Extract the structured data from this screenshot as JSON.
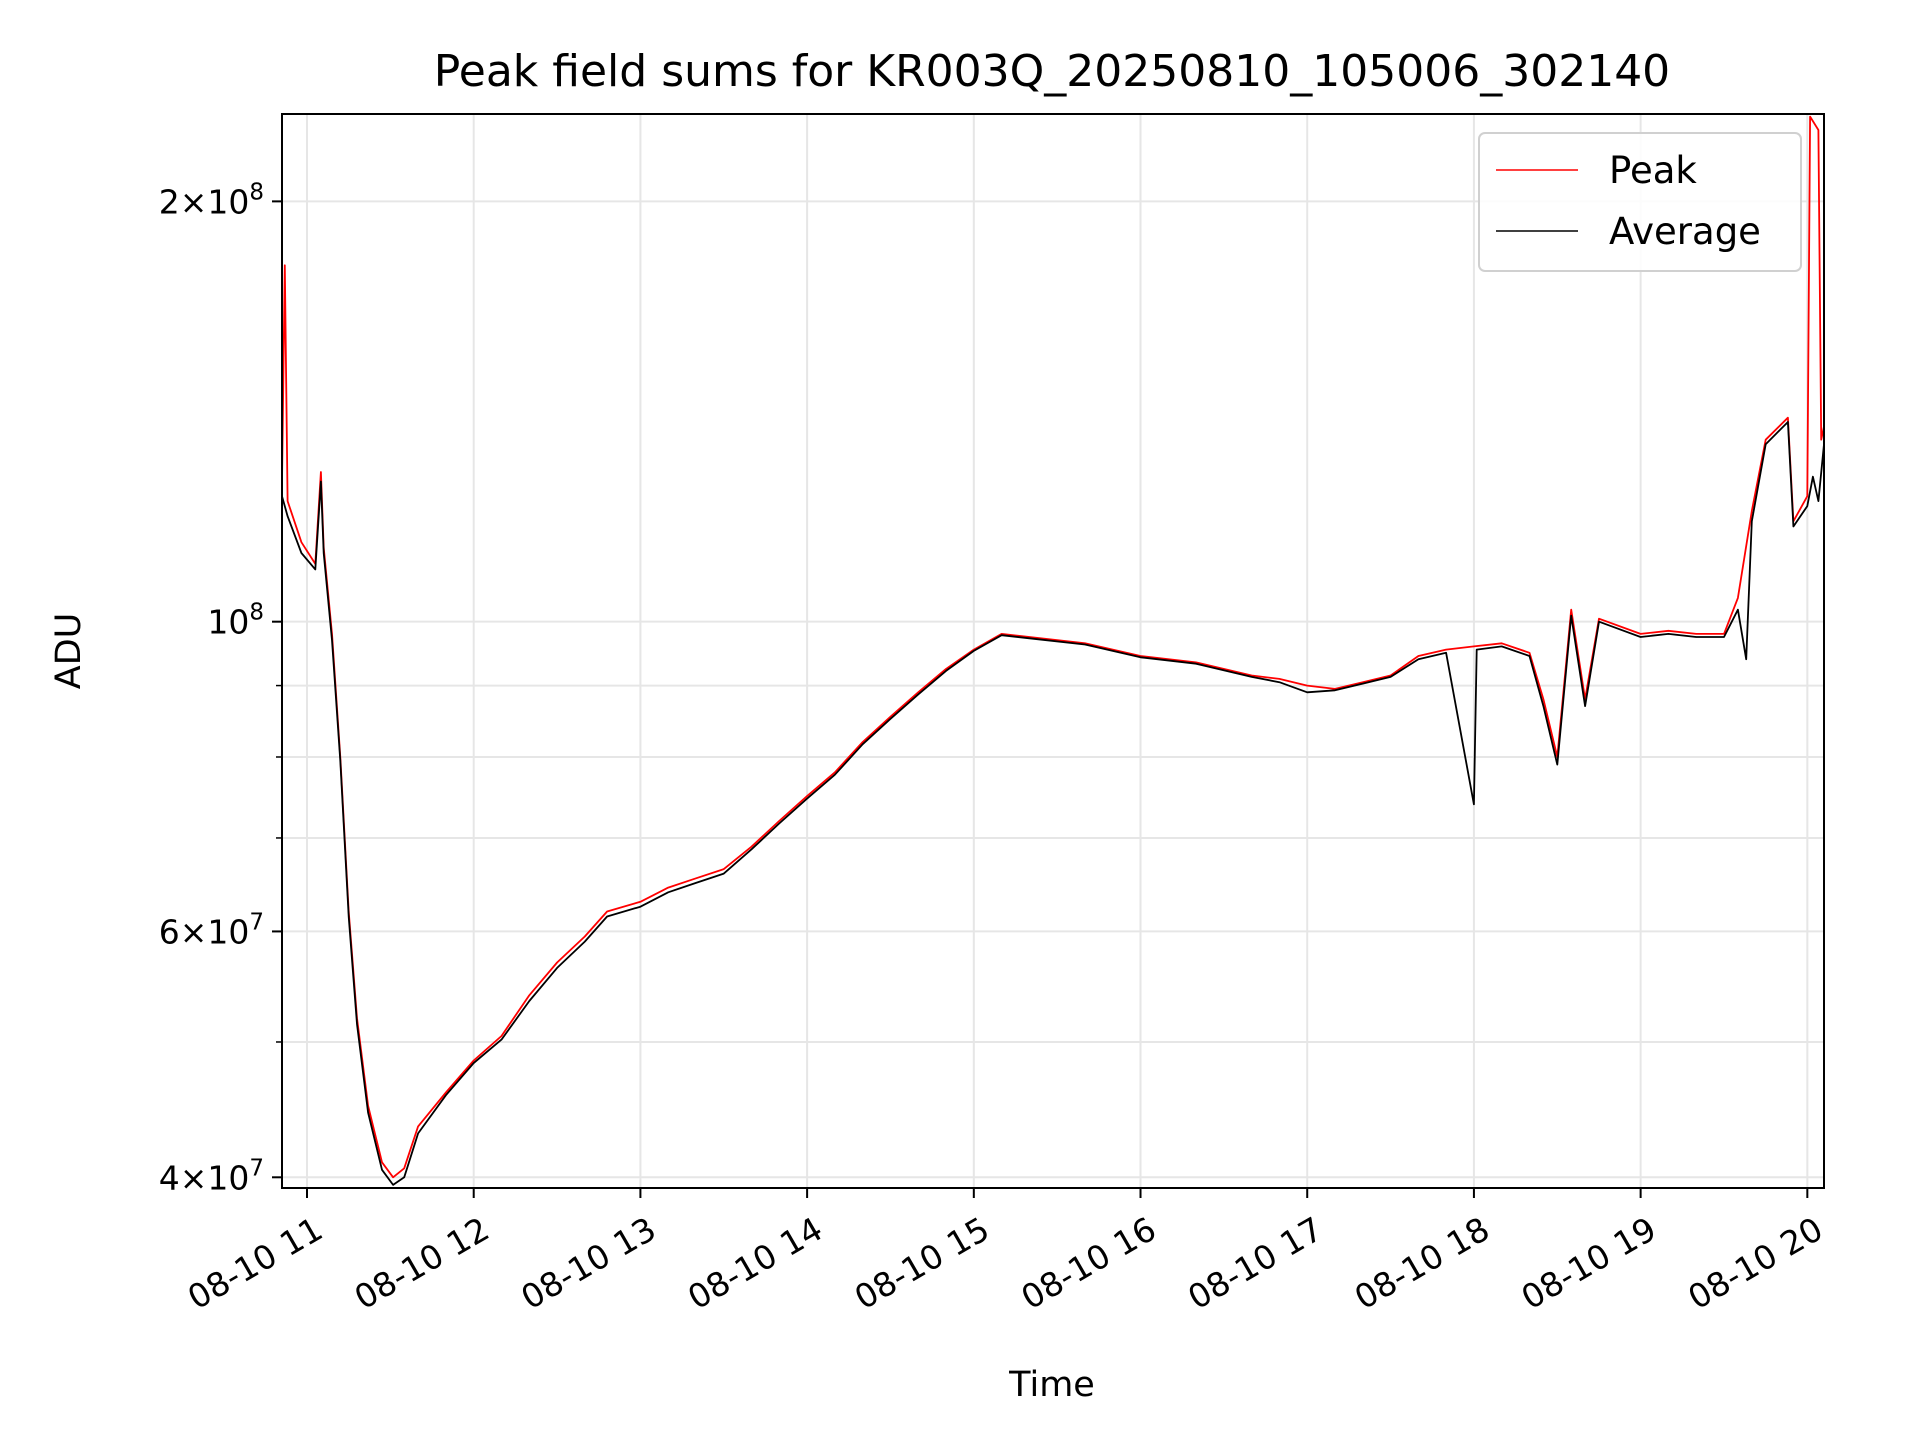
{
  "chart_data": {
    "type": "line",
    "title": "Peak field sums for KR003Q_20250810_105006_302140",
    "xlabel": "Time",
    "ylabel": "ADU",
    "y_scale": "log",
    "xlim": [
      "08-10 10:51",
      "08-10 20:06"
    ],
    "ylim": [
      39300000,
      231000000
    ],
    "grid": true,
    "legend_position": "top-right",
    "x_ticks": [
      {
        "t": "08-10 11:00",
        "label": "08-10 11"
      },
      {
        "t": "08-10 12:00",
        "label": "08-10 12"
      },
      {
        "t": "08-10 13:00",
        "label": "08-10 13"
      },
      {
        "t": "08-10 14:00",
        "label": "08-10 14"
      },
      {
        "t": "08-10 15:00",
        "label": "08-10 15"
      },
      {
        "t": "08-10 16:00",
        "label": "08-10 16"
      },
      {
        "t": "08-10 17:00",
        "label": "08-10 17"
      },
      {
        "t": "08-10 18:00",
        "label": "08-10 18"
      },
      {
        "t": "08-10 19:00",
        "label": "08-10 19"
      },
      {
        "t": "08-10 20:00",
        "label": "08-10 20"
      }
    ],
    "y_ticks_major": [
      {
        "value": 40000000,
        "mantissa": "4",
        "exponent": "7"
      },
      {
        "value": 60000000,
        "mantissa": "6",
        "exponent": "7"
      },
      {
        "value": 100000000,
        "mantissa": "",
        "exponent": "8"
      },
      {
        "value": 200000000,
        "mantissa": "2",
        "exponent": "8"
      }
    ],
    "y_ticks_minor": [
      50000000,
      70000000,
      80000000,
      90000000
    ],
    "series": [
      {
        "name": "Peak",
        "color": "#ff0000",
        "points": [
          [
            "08-10 10:51",
            126000000
          ],
          [
            "08-10 10:52",
            180000000
          ],
          [
            "08-10 10:53",
            122000000
          ],
          [
            "08-10 10:58",
            114000000
          ],
          [
            "08-10 11:03",
            110000000
          ],
          [
            "08-10 11:05",
            128000000
          ],
          [
            "08-10 11:06",
            113000000
          ],
          [
            "08-10 11:09",
            98000000
          ],
          [
            "08-10 11:12",
            80000000
          ],
          [
            "08-10 11:15",
            62000000
          ],
          [
            "08-10 11:18",
            52000000
          ],
          [
            "08-10 11:22",
            45000000
          ],
          [
            "08-10 11:27",
            41000000
          ],
          [
            "08-10 11:31",
            40000000
          ],
          [
            "08-10 11:35",
            40600000
          ],
          [
            "08-10 11:40",
            43500000
          ],
          [
            "08-10 11:50",
            46000000
          ],
          [
            "08-10 12:00",
            48500000
          ],
          [
            "08-10 12:10",
            50500000
          ],
          [
            "08-10 12:20",
            54000000
          ],
          [
            "08-10 12:30",
            57000000
          ],
          [
            "08-10 12:40",
            59500000
          ],
          [
            "08-10 12:48",
            62000000
          ],
          [
            "08-10 13:00",
            63000000
          ],
          [
            "08-10 13:10",
            64500000
          ],
          [
            "08-10 13:20",
            65500000
          ],
          [
            "08-10 13:30",
            66500000
          ],
          [
            "08-10 13:40",
            69000000
          ],
          [
            "08-10 13:50",
            72000000
          ],
          [
            "08-10 14:00",
            75000000
          ],
          [
            "08-10 14:10",
            78000000
          ],
          [
            "08-10 14:20",
            82000000
          ],
          [
            "08-10 14:30",
            85500000
          ],
          [
            "08-10 14:40",
            89000000
          ],
          [
            "08-10 14:50",
            92500000
          ],
          [
            "08-10 15:00",
            95500000
          ],
          [
            "08-10 15:10",
            98000000
          ],
          [
            "08-10 15:20",
            97500000
          ],
          [
            "08-10 15:40",
            96500000
          ],
          [
            "08-10 16:00",
            94500000
          ],
          [
            "08-10 16:20",
            93500000
          ],
          [
            "08-10 16:40",
            91500000
          ],
          [
            "08-10 16:50",
            91000000
          ],
          [
            "08-10 17:00",
            90000000
          ],
          [
            "08-10 17:10",
            89500000
          ],
          [
            "08-10 17:20",
            90500000
          ],
          [
            "08-10 17:30",
            91500000
          ],
          [
            "08-10 17:40",
            94500000
          ],
          [
            "08-10 17:50",
            95500000
          ],
          [
            "08-10 18:00",
            96000000
          ],
          [
            "08-10 18:10",
            96500000
          ],
          [
            "08-10 18:20",
            95000000
          ],
          [
            "08-10 18:25",
            88000000
          ],
          [
            "08-10 18:30",
            80000000
          ],
          [
            "08-10 18:35",
            102000000
          ],
          [
            "08-10 18:40",
            88000000
          ],
          [
            "08-10 18:45",
            100500000
          ],
          [
            "08-10 19:00",
            98000000
          ],
          [
            "08-10 19:10",
            98500000
          ],
          [
            "08-10 19:20",
            98000000
          ],
          [
            "08-10 19:30",
            98000000
          ],
          [
            "08-10 19:35",
            104000000
          ],
          [
            "08-10 19:40",
            120000000
          ],
          [
            "08-10 19:45",
            135000000
          ],
          [
            "08-10 19:53",
            140000000
          ],
          [
            "08-10 19:55",
            118000000
          ],
          [
            "08-10 20:00",
            123000000
          ],
          [
            "08-10 20:01",
            230000000
          ],
          [
            "08-10 20:04",
            225000000
          ],
          [
            "08-10 20:05",
            135000000
          ],
          [
            "08-10 20:06",
            138000000
          ]
        ]
      },
      {
        "name": "Average",
        "color": "#000000",
        "points": [
          [
            "08-10 10:51",
            123000000
          ],
          [
            "08-10 10:53",
            119000000
          ],
          [
            "08-10 10:58",
            112000000
          ],
          [
            "08-10 11:03",
            109000000
          ],
          [
            "08-10 11:05",
            126000000
          ],
          [
            "08-10 11:06",
            112000000
          ],
          [
            "08-10 11:09",
            97000000
          ],
          [
            "08-10 11:12",
            79500000
          ],
          [
            "08-10 11:15",
            61500000
          ],
          [
            "08-10 11:18",
            51500000
          ],
          [
            "08-10 11:22",
            44500000
          ],
          [
            "08-10 11:27",
            40500000
          ],
          [
            "08-10 11:31",
            39500000
          ],
          [
            "08-10 11:35",
            40000000
          ],
          [
            "08-10 11:40",
            43000000
          ],
          [
            "08-10 11:50",
            45800000
          ],
          [
            "08-10 12:00",
            48300000
          ],
          [
            "08-10 12:10",
            50200000
          ],
          [
            "08-10 12:20",
            53500000
          ],
          [
            "08-10 12:30",
            56500000
          ],
          [
            "08-10 12:40",
            59000000
          ],
          [
            "08-10 12:48",
            61500000
          ],
          [
            "08-10 13:00",
            62500000
          ],
          [
            "08-10 13:10",
            64000000
          ],
          [
            "08-10 13:20",
            65000000
          ],
          [
            "08-10 13:30",
            66000000
          ],
          [
            "08-10 13:40",
            68700000
          ],
          [
            "08-10 13:50",
            71700000
          ],
          [
            "08-10 14:00",
            74700000
          ],
          [
            "08-10 14:10",
            77700000
          ],
          [
            "08-10 14:20",
            81700000
          ],
          [
            "08-10 14:30",
            85200000
          ],
          [
            "08-10 14:40",
            88700000
          ],
          [
            "08-10 14:50",
            92200000
          ],
          [
            "08-10 15:00",
            95300000
          ],
          [
            "08-10 15:10",
            97800000
          ],
          [
            "08-10 15:20",
            97300000
          ],
          [
            "08-10 15:40",
            96300000
          ],
          [
            "08-10 16:00",
            94300000
          ],
          [
            "08-10 16:20",
            93300000
          ],
          [
            "08-10 16:40",
            91300000
          ],
          [
            "08-10 16:50",
            90500000
          ],
          [
            "08-10 17:00",
            89000000
          ],
          [
            "08-10 17:10",
            89300000
          ],
          [
            "08-10 17:20",
            90300000
          ],
          [
            "08-10 17:30",
            91300000
          ],
          [
            "08-10 17:40",
            94000000
          ],
          [
            "08-10 17:50",
            95000000
          ],
          [
            "08-10 18:00",
            74000000
          ],
          [
            "08-10 18:01",
            95500000
          ],
          [
            "08-10 18:10",
            96000000
          ],
          [
            "08-10 18:20",
            94500000
          ],
          [
            "08-10 18:25",
            87000000
          ],
          [
            "08-10 18:30",
            79000000
          ],
          [
            "08-10 18:35",
            101000000
          ],
          [
            "08-10 18:40",
            87000000
          ],
          [
            "08-10 18:45",
            100000000
          ],
          [
            "08-10 19:00",
            97500000
          ],
          [
            "08-10 19:10",
            98000000
          ],
          [
            "08-10 19:20",
            97500000
          ],
          [
            "08-10 19:30",
            97500000
          ],
          [
            "08-10 19:35",
            102000000
          ],
          [
            "08-10 19:38",
            94000000
          ],
          [
            "08-10 19:40",
            118000000
          ],
          [
            "08-10 19:45",
            134000000
          ],
          [
            "08-10 19:53",
            139000000
          ],
          [
            "08-10 19:55",
            117000000
          ],
          [
            "08-10 20:00",
            121000000
          ],
          [
            "08-10 20:02",
            127000000
          ],
          [
            "08-10 20:04",
            122000000
          ],
          [
            "08-10 20:06",
            134000000
          ]
        ]
      }
    ]
  }
}
